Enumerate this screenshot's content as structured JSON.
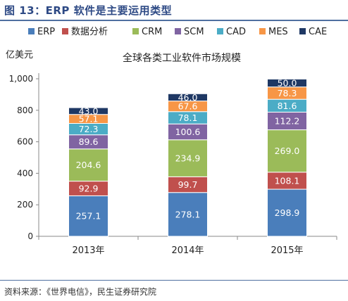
{
  "figure": {
    "title": "图 13：ERP 软件是主要运用类型",
    "source": "资料来源：《世界电信》，民生证券研究院"
  },
  "chart_data": {
    "type": "bar",
    "stacked": true,
    "title": "全球各类工业软件市场规模",
    "ylabel": "亿美元",
    "xlabel": "",
    "ylim": [
      0,
      1000
    ],
    "yticks": [
      0,
      200,
      400,
      600,
      800,
      1000
    ],
    "ytick_labels": [
      "0",
      "200",
      "400",
      "600",
      "800",
      "1,000"
    ],
    "categories": [
      "2013年",
      "2014年",
      "2015年"
    ],
    "legend_position": "top",
    "grid": false,
    "series": [
      {
        "name": "ERP",
        "color": "#4a7ebb",
        "values": [
          257.1,
          278.1,
          298.9
        ],
        "labels": [
          "257.1",
          "278.1",
          "298.9"
        ]
      },
      {
        "name": "数据分析",
        "color": "#c0504d",
        "values": [
          92.9,
          99.7,
          108.1
        ],
        "labels": [
          "92.9",
          "99.7",
          "108.1"
        ]
      },
      {
        "name": "CRM",
        "color": "#9bbb59",
        "values": [
          204.6,
          234.9,
          269.0
        ],
        "labels": [
          "204.6",
          "234.9",
          "269.0"
        ]
      },
      {
        "name": "SCM",
        "color": "#8064a2",
        "values": [
          89.6,
          100.6,
          112.2
        ],
        "labels": [
          "89.6",
          "100.6",
          "112.2"
        ]
      },
      {
        "name": "CAD",
        "color": "#4bacc6",
        "values": [
          72.3,
          78.1,
          81.6
        ],
        "labels": [
          "72.3",
          "78.1",
          "81.6"
        ]
      },
      {
        "name": "MES",
        "color": "#f79646",
        "values": [
          57.1,
          67.6,
          78.3
        ],
        "labels": [
          "57.1",
          "67.6",
          "78.3"
        ]
      },
      {
        "name": "CAE",
        "color": "#1f3864",
        "values": [
          43.0,
          46.0,
          50.0
        ],
        "labels": [
          "43.0",
          "46.0",
          "50.0"
        ]
      }
    ]
  }
}
